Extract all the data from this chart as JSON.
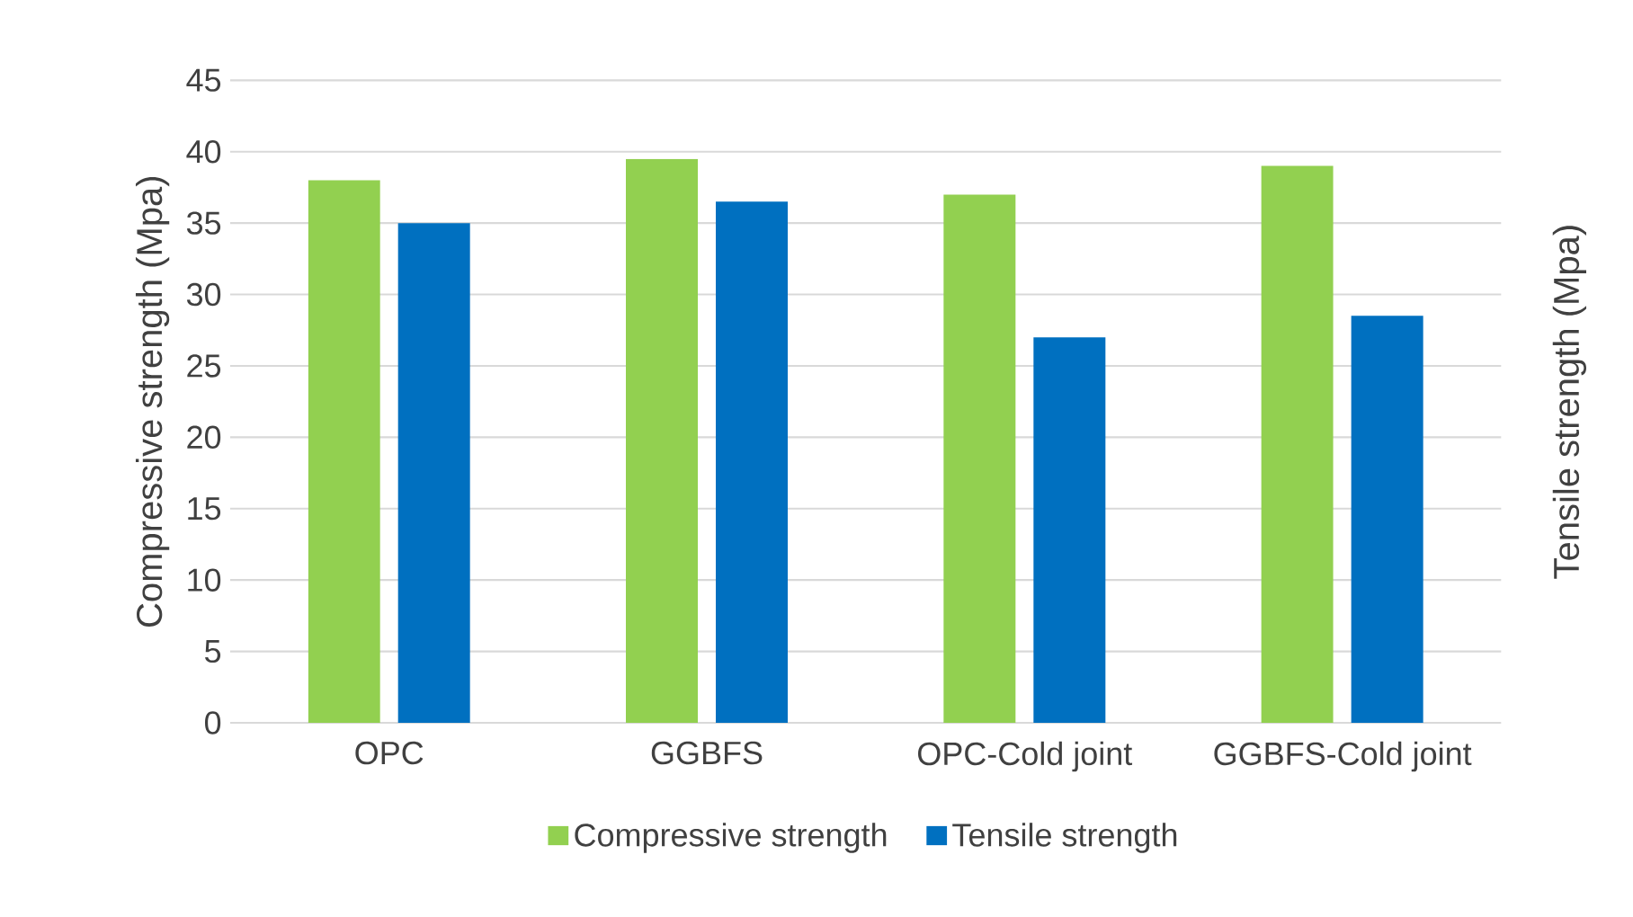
{
  "chart_data": {
    "type": "bar",
    "ylabel": "Compressive strength (Mpa)",
    "y2label": "Tensile strength (Mpa)",
    "categories": [
      "OPC",
      "GGBFS",
      "OPC-Cold joint",
      "GGBFS-Cold joint"
    ],
    "series": [
      {
        "name": "Compressive strength",
        "color": "#92d050",
        "values": [
          38,
          39.5,
          37,
          39
        ]
      },
      {
        "name": "Tensile strength",
        "color": "#0070c0",
        "values": [
          35,
          36.5,
          27,
          28.5
        ]
      }
    ],
    "ylim": [
      0,
      45
    ],
    "yticks": [
      0,
      5,
      10,
      15,
      20,
      25,
      30,
      35,
      40,
      45
    ],
    "grid": "y",
    "legend": "bottom"
  }
}
